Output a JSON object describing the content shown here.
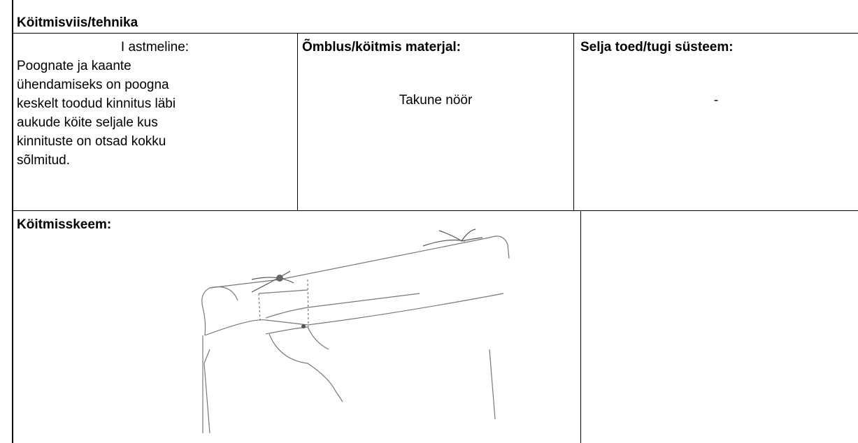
{
  "section_title": "Köitmisviis/tehnika",
  "table": {
    "row1": {
      "technique": {
        "heading": "I astmeline:",
        "lines": [
          "Poognate  ja kaante",
          "ühendamiseks on poogna",
          "keskelt  toodud kinnitus läbi",
          "aukude köite seljale kus",
          "kinnituste on otsad kokku",
          "sõlmitud."
        ]
      },
      "material": {
        "heading": "Õmblus/köitmis materjal:",
        "value": "Takune nöör"
      },
      "support": {
        "heading": "Selja toed/tugi süsteem:",
        "value": "-"
      }
    },
    "row2": {
      "diagram_heading": "Köitmisskeem:"
    }
  }
}
